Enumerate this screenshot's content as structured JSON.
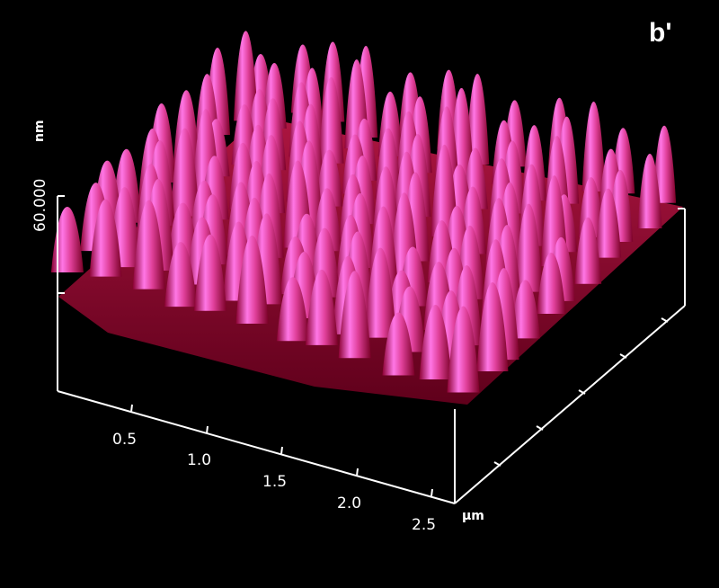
{
  "panel_label": "b'",
  "z_axis": {
    "max_label": "60.000",
    "unit": "nm"
  },
  "x_axis": {
    "ticks": [
      "0.5",
      "1.0",
      "1.5",
      "2.0",
      "2.5"
    ],
    "unit": "μm"
  },
  "surface": {
    "peak_color": "#ff66dd",
    "base_color": "#b8003a",
    "shadow_color": "#5a0018"
  }
}
